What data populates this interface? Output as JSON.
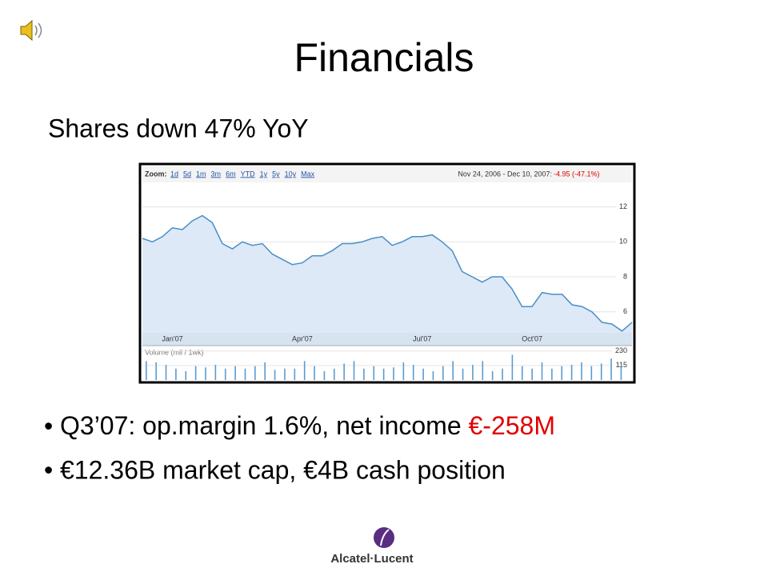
{
  "title": "Financials",
  "subtitle": "Shares down 47% YoY",
  "bullets": [
    {
      "text": "Q3’07: op.margin 1.6%, net income ",
      "highlight": "€-258M"
    },
    {
      "text": "€12.36B market cap, €4B cash position"
    }
  ],
  "chart_header": {
    "zoom_label": "Zoom:",
    "zoom_links": [
      "1d",
      "5d",
      "1m",
      "3m",
      "6m",
      "YTD",
      "1y",
      "5y",
      "10y",
      "Max"
    ],
    "range": "Nov 24, 2006 - Dec 10, 2007:",
    "change": "-4.95 (-47.1%)"
  },
  "logo": "Alcatel·Lucent",
  "chart_data": [
    {
      "type": "line",
      "color": "#4a8ec6",
      "fill": "#dde9f6",
      "grid": true,
      "categories": [
        null,
        null,
        null,
        "Jan'07",
        null,
        null,
        null,
        null,
        null,
        null,
        null,
        null,
        null,
        null,
        null,
        null,
        "Apr'07",
        null,
        null,
        null,
        null,
        null,
        null,
        null,
        null,
        null,
        null,
        null,
        "Jul'07",
        null,
        null,
        null,
        null,
        null,
        null,
        null,
        null,
        null,
        null,
        "Oct'07",
        null,
        null,
        null,
        null,
        null,
        null,
        null,
        null,
        null,
        null
      ],
      "values": [
        10.2,
        10.0,
        10.3,
        10.8,
        10.7,
        11.2,
        11.5,
        11.1,
        9.9,
        9.6,
        10.0,
        9.8,
        9.9,
        9.3,
        9.0,
        8.7,
        8.8,
        9.2,
        9.2,
        9.5,
        9.9,
        9.9,
        10.0,
        10.2,
        10.3,
        9.8,
        10.0,
        10.3,
        10.3,
        10.4,
        10.0,
        9.5,
        8.3,
        8.0,
        7.7,
        8.0,
        8.0,
        7.3,
        6.3,
        6.3,
        7.1,
        7.0,
        7.0,
        6.4,
        6.3,
        6.0,
        5.4,
        5.3,
        4.9,
        5.4
      ],
      "ylim": [
        4.8,
        13.4
      ],
      "yticks": [
        6,
        8,
        10,
        12
      ]
    },
    {
      "type": "bar",
      "title": "Volume (mil / 1wk)",
      "color": "#5a9ad0",
      "values": [
        150,
        140,
        120,
        90,
        70,
        110,
        100,
        120,
        90,
        110,
        90,
        110,
        140,
        80,
        90,
        90,
        150,
        110,
        70,
        90,
        130,
        150,
        90,
        110,
        90,
        100,
        140,
        120,
        90,
        70,
        110,
        150,
        90,
        120,
        150,
        70,
        90,
        200,
        110,
        90,
        140,
        90,
        110,
        120,
        140,
        110,
        130,
        170,
        110
      ],
      "ylim": [
        0,
        260
      ],
      "yticks": [
        115,
        230
      ]
    }
  ]
}
